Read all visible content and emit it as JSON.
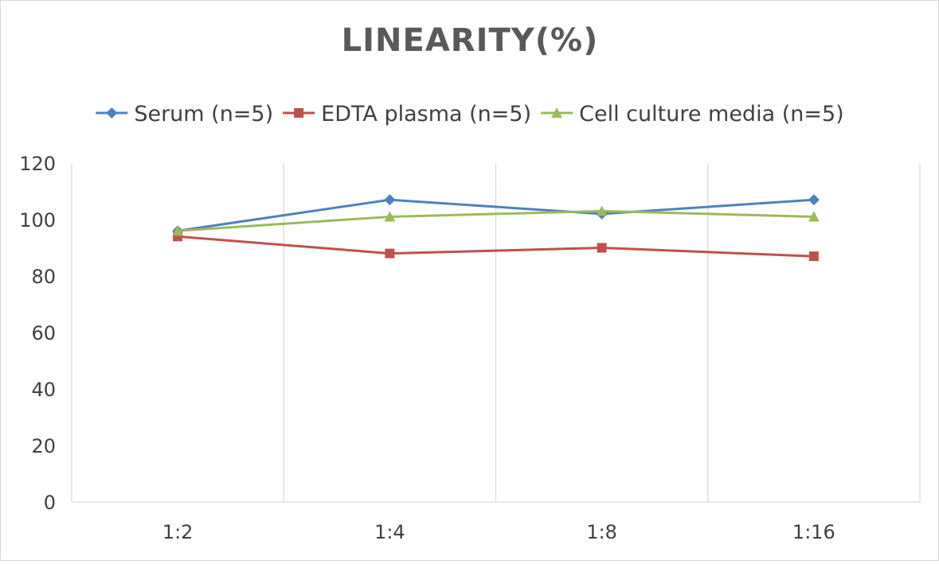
{
  "chart_data": {
    "type": "line",
    "title": "LINEARITY(%)",
    "xlabel": "",
    "ylabel": "",
    "categories": [
      "1:2",
      "1:4",
      "1:8",
      "1:16"
    ],
    "ylim": [
      0,
      120
    ],
    "yticks": [
      0,
      20,
      40,
      60,
      80,
      100,
      120
    ],
    "grid": "vertical",
    "legend_position": "top",
    "series": [
      {
        "name": "Serum (n=5)",
        "values": [
          96,
          107,
          102,
          107
        ],
        "color": "#4f81bd",
        "marker": "diamond"
      },
      {
        "name": "EDTA plasma (n=5)",
        "values": [
          94,
          88,
          90,
          87
        ],
        "color": "#c0504d",
        "marker": "square"
      },
      {
        "name": "Cell culture media (n=5)",
        "values": [
          96,
          101,
          103,
          101
        ],
        "color": "#9bbb59",
        "marker": "triangle"
      }
    ]
  }
}
